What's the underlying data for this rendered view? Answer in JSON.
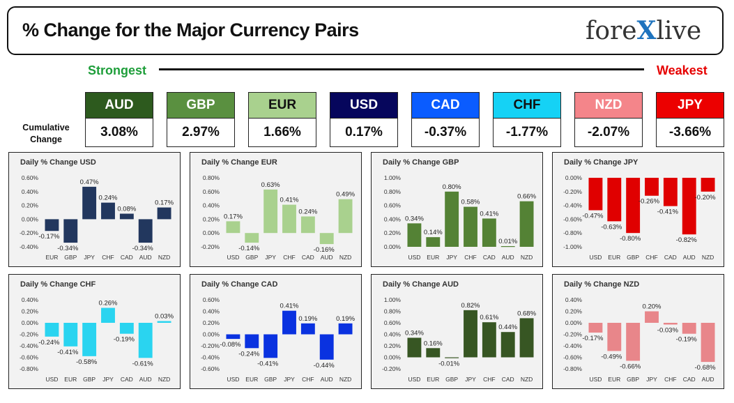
{
  "header": {
    "title": "% Change for the Major Currency Pairs",
    "logo_text_a": "fore",
    "logo_text_x": "X",
    "logo_text_b": "live"
  },
  "scale": {
    "strongest_label": "Strongest",
    "weakest_label": "Weakest"
  },
  "cumulative": {
    "label": "Cumulative Change",
    "items": [
      {
        "code": "AUD",
        "value": "3.08%",
        "bg": "#2d5a1e",
        "fg": "#ffffff"
      },
      {
        "code": "GBP",
        "value": "2.97%",
        "bg": "#5a9040",
        "fg": "#ffffff"
      },
      {
        "code": "EUR",
        "value": "1.66%",
        "bg": "#a9d18e",
        "fg": "#111111"
      },
      {
        "code": "USD",
        "value": "0.17%",
        "bg": "#06065c",
        "fg": "#ffffff"
      },
      {
        "code": "CAD",
        "value": "-0.37%",
        "bg": "#0a5cff",
        "fg": "#ffffff"
      },
      {
        "code": "CHF",
        "value": "-1.77%",
        "bg": "#15d2f5",
        "fg": "#111111"
      },
      {
        "code": "NZD",
        "value": "-2.07%",
        "bg": "#f4858a",
        "fg": "#ffffff"
      },
      {
        "code": "JPY",
        "value": "-3.66%",
        "bg": "#ec0000",
        "fg": "#ffffff"
      }
    ]
  },
  "chart_data": [
    {
      "type": "bar",
      "title": "Daily % Change USD",
      "color": "#22375e",
      "categories": [
        "EUR",
        "GBP",
        "JPY",
        "CHF",
        "CAD",
        "AUD",
        "NZD"
      ],
      "values": [
        -0.17,
        -0.34,
        0.47,
        0.24,
        0.08,
        -0.34,
        0.17
      ],
      "labels": [
        "-0.17%",
        "-0.34%",
        "0.47%",
        "0.24%",
        "0.08%",
        "-0.34%",
        "0.17%"
      ],
      "ylim": [
        -0.4,
        0.6
      ],
      "ticks": [
        0.6,
        0.4,
        0.2,
        0.0,
        -0.2,
        -0.4
      ],
      "tick_labels": [
        "0.60%",
        "0.40%",
        "0.20%",
        "0.00%",
        "-0.20%",
        "-0.40%"
      ]
    },
    {
      "type": "bar",
      "title": "Daily % Change EUR",
      "color": "#a9d18e",
      "categories": [
        "USD",
        "GBP",
        "JPY",
        "CHF",
        "CAD",
        "AUD",
        "NZD"
      ],
      "values": [
        0.17,
        -0.14,
        0.63,
        0.41,
        0.24,
        -0.16,
        0.49
      ],
      "labels": [
        "0.17%",
        "-0.14%",
        "0.63%",
        "0.41%",
        "0.24%",
        "-0.16%",
        "0.49%"
      ],
      "ylim": [
        -0.2,
        0.8
      ],
      "ticks": [
        0.8,
        0.6,
        0.4,
        0.2,
        0.0,
        -0.2
      ],
      "tick_labels": [
        "0.80%",
        "0.60%",
        "0.40%",
        "0.20%",
        "0.00%",
        "-0.20%"
      ]
    },
    {
      "type": "bar",
      "title": "Daily % Change GBP",
      "color": "#548235",
      "categories": [
        "USD",
        "EUR",
        "JPY",
        "CHF",
        "CAD",
        "AUD",
        "NZD"
      ],
      "values": [
        0.34,
        0.14,
        0.8,
        0.58,
        0.41,
        0.01,
        0.66
      ],
      "labels": [
        "0.34%",
        "0.14%",
        "0.80%",
        "0.58%",
        "0.41%",
        "0.01%",
        "0.66%"
      ],
      "ylim": [
        0.0,
        1.0
      ],
      "ticks": [
        1.0,
        0.8,
        0.6,
        0.4,
        0.2,
        0.0
      ],
      "tick_labels": [
        "1.00%",
        "0.80%",
        "0.60%",
        "0.40%",
        "0.20%",
        "0.00%"
      ]
    },
    {
      "type": "bar",
      "title": "Daily % Change JPY",
      "color": "#e00000",
      "categories": [
        "USD",
        "EUR",
        "GBP",
        "CHF",
        "CAD",
        "AUD",
        "NZD"
      ],
      "values": [
        -0.47,
        -0.63,
        -0.8,
        -0.26,
        -0.41,
        -0.82,
        -0.2
      ],
      "labels": [
        "-0.47%",
        "-0.63%",
        "-0.80%",
        "-0.26%",
        "-0.41%",
        "-0.82%",
        "-0.20%"
      ],
      "ylim": [
        -1.0,
        0.0
      ],
      "ticks": [
        0.0,
        -0.2,
        -0.4,
        -0.6,
        -0.8,
        -1.0
      ],
      "tick_labels": [
        "0.00%",
        "-0.20%",
        "-0.40%",
        "-0.60%",
        "-0.80%",
        "-1.00%"
      ]
    },
    {
      "type": "bar",
      "title": "Daily % Change CHF",
      "color": "#2ad4f0",
      "categories": [
        "USD",
        "EUR",
        "GBP",
        "JPY",
        "CAD",
        "AUD",
        "NZD"
      ],
      "values": [
        -0.24,
        -0.41,
        -0.58,
        0.26,
        -0.19,
        -0.61,
        0.03
      ],
      "labels": [
        "-0.24%",
        "-0.41%",
        "-0.58%",
        "0.26%",
        "-0.19%",
        "-0.61%",
        "0.03%"
      ],
      "ylim": [
        -0.8,
        0.4
      ],
      "ticks": [
        0.4,
        0.2,
        0.0,
        -0.2,
        -0.4,
        -0.6,
        -0.8
      ],
      "tick_labels": [
        "0.40%",
        "0.20%",
        "0.00%",
        "-0.20%",
        "-0.40%",
        "-0.60%",
        "-0.80%"
      ]
    },
    {
      "type": "bar",
      "title": "Daily % Change CAD",
      "color": "#0a32e0",
      "categories": [
        "USD",
        "EUR",
        "GBP",
        "JPY",
        "CHF",
        "AUD",
        "NZD"
      ],
      "values": [
        -0.08,
        -0.24,
        -0.41,
        0.41,
        0.19,
        -0.44,
        0.19
      ],
      "labels": [
        "-0.08%",
        "-0.24%",
        "-0.41%",
        "0.41%",
        "0.19%",
        "-0.44%",
        "0.19%"
      ],
      "ylim": [
        -0.6,
        0.6
      ],
      "ticks": [
        0.6,
        0.4,
        0.2,
        0.0,
        -0.2,
        -0.4,
        -0.6
      ],
      "tick_labels": [
        "0.60%",
        "0.40%",
        "0.20%",
        "0.00%",
        "-0.20%",
        "-0.40%",
        "-0.60%"
      ]
    },
    {
      "type": "bar",
      "title": "Daily % Change AUD",
      "color": "#375623",
      "categories": [
        "USD",
        "EUR",
        "GBP",
        "JPY",
        "CHF",
        "CAD",
        "NZD"
      ],
      "values": [
        0.34,
        0.16,
        -0.01,
        0.82,
        0.61,
        0.44,
        0.68
      ],
      "labels": [
        "0.34%",
        "0.16%",
        "-0.01%",
        "0.82%",
        "0.61%",
        "0.44%",
        "0.68%"
      ],
      "ylim": [
        -0.2,
        1.0
      ],
      "ticks": [
        1.0,
        0.8,
        0.6,
        0.4,
        0.2,
        0.0,
        -0.2
      ],
      "tick_labels": [
        "1.00%",
        "0.80%",
        "0.60%",
        "0.40%",
        "0.20%",
        "0.00%",
        "-0.20%"
      ]
    },
    {
      "type": "bar",
      "title": "Daily % Change NZD",
      "color": "#e8868a",
      "categories": [
        "USD",
        "EUR",
        "GBP",
        "JPY",
        "CHF",
        "CAD",
        "AUD"
      ],
      "values": [
        -0.17,
        -0.49,
        -0.66,
        0.2,
        -0.03,
        -0.19,
        -0.68
      ],
      "labels": [
        "-0.17%",
        "-0.49%",
        "-0.66%",
        "0.20%",
        "-0.03%",
        "-0.19%",
        "-0.68%"
      ],
      "ylim": [
        -0.8,
        0.4
      ],
      "ticks": [
        0.4,
        0.2,
        0.0,
        -0.2,
        -0.4,
        -0.6,
        -0.8
      ],
      "tick_labels": [
        "0.40%",
        "0.20%",
        "0.00%",
        "-0.20%",
        "-0.40%",
        "-0.60%",
        "-0.80%"
      ]
    }
  ]
}
